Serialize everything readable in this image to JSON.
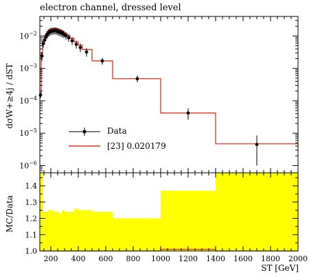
{
  "title": "electron channel, dressed level",
  "y_label_main": "dσW+≥4j / dST",
  "y_label_ratio": "MC/Data",
  "x_label": "ST [GeV]",
  "legend": {
    "data_label": "Data",
    "mc_label": "[23] 0.020179"
  },
  "colors": {
    "mc_line": "#e8301c",
    "band": "#ffff00",
    "data": "#000000"
  },
  "chart_data": [
    {
      "type": "line",
      "panel": "main",
      "title": "electron channel, dressed level",
      "x_scale": "linear",
      "y_scale": "log",
      "xlim": [
        120,
        2000
      ],
      "ylim": [
        6e-07,
        0.04
      ],
      "x_ticks": [
        200,
        400,
        600,
        800,
        1000,
        1200,
        1400,
        1600,
        1800,
        2000
      ],
      "y_ticks": [
        "10^-2",
        "10^-3",
        "10^-4",
        "10^-5",
        "10^-6"
      ],
      "series": [
        {
          "name": "Data",
          "kind": "points_with_errors",
          "x": [
            125,
            135,
            145,
            155,
            165,
            175,
            185,
            195,
            205,
            215,
            225,
            235,
            245,
            255,
            265,
            275,
            285,
            295,
            310,
            330,
            355,
            385,
            415,
            460,
            575,
            830,
            1200,
            1700
          ],
          "y": [
            0.00015,
            0.0024,
            0.0058,
            0.0075,
            0.0095,
            0.011,
            0.0125,
            0.0135,
            0.014,
            0.0142,
            0.0145,
            0.0145,
            0.014,
            0.0135,
            0.013,
            0.0125,
            0.012,
            0.0112,
            0.0102,
            0.0088,
            0.0071,
            0.0055,
            0.0044,
            0.0032,
            0.0017,
            0.00048,
            4.2e-05,
            4.5e-06
          ],
          "y_err_low": [
            3e-05,
            0.0007,
            0.0015,
            0.0019,
            0.0024,
            0.0027,
            0.003,
            0.0032,
            0.0033,
            0.0033,
            0.0034,
            0.0034,
            0.0033,
            0.0032,
            0.0031,
            0.003,
            0.0029,
            0.0027,
            0.0025,
            0.0022,
            0.0018,
            0.0014,
            0.0012,
            0.0009,
            0.0004,
            0.00011,
            1.6e-05,
            3.5e-06
          ],
          "y_err_high": [
            3e-05,
            0.0008,
            0.0018,
            0.0022,
            0.0028,
            0.0032,
            0.0035,
            0.0037,
            0.0038,
            0.0038,
            0.0039,
            0.0039,
            0.0038,
            0.0037,
            0.0036,
            0.0035,
            0.0034,
            0.0032,
            0.003,
            0.0026,
            0.0021,
            0.0017,
            0.0014,
            0.001,
            0.0004,
            0.00011,
            1.6e-05,
            4e-06
          ]
        },
        {
          "name": "[23] 0.020179",
          "kind": "histogram",
          "bin_edges": [
            120,
            130,
            140,
            150,
            160,
            170,
            180,
            190,
            200,
            210,
            220,
            230,
            240,
            250,
            260,
            270,
            280,
            290,
            300,
            320,
            340,
            370,
            400,
            430,
            500,
            650,
            1000,
            1400,
            2000
          ],
          "values": [
            0.00016,
            0.0028,
            0.0068,
            0.0092,
            0.0115,
            0.0135,
            0.015,
            0.016,
            0.0167,
            0.017,
            0.0172,
            0.0172,
            0.0168,
            0.0162,
            0.0155,
            0.0148,
            0.014,
            0.0132,
            0.0118,
            0.0103,
            0.0085,
            0.0066,
            0.0052,
            0.0038,
            0.0017,
            0.00048,
            4.2e-05,
            4.7e-06
          ]
        }
      ]
    },
    {
      "type": "area",
      "panel": "ratio",
      "x_scale": "linear",
      "y_scale": "linear",
      "xlim": [
        120,
        2000
      ],
      "ylim": [
        1.0,
        1.48
      ],
      "x_ticks": [
        200,
        400,
        600,
        800,
        1000,
        1200,
        1400,
        1600,
        1800,
        2000
      ],
      "y_ticks": [
        1.0,
        1.1,
        1.2,
        1.3,
        1.4
      ],
      "series": [
        {
          "kind": "band",
          "bin_edges": [
            120,
            140,
            160,
            180,
            200,
            220,
            240,
            260,
            280,
            300,
            320,
            340,
            370,
            400,
            430,
            500,
            650,
            1000,
            1400,
            2000
          ],
          "lower": [
            1.0,
            1.0,
            1.0,
            1.0,
            1.0,
            1.0,
            1.0,
            1.0,
            1.0,
            1.0,
            1.0,
            1.0,
            1.0,
            1.0,
            1.0,
            1.0,
            1.0,
            1.0,
            1.0
          ],
          "upper": [
            1.48,
            1.24,
            1.24,
            1.25,
            1.25,
            1.24,
            1.24,
            1.23,
            1.25,
            1.24,
            1.24,
            1.24,
            1.26,
            1.25,
            1.25,
            1.24,
            1.2,
            1.37,
            1.48
          ]
        },
        {
          "kind": "histogram",
          "bin_edges": [
            120,
            1000,
            1400,
            2000
          ],
          "values": [
            1.0,
            1.01,
            1.0
          ]
        }
      ]
    }
  ]
}
